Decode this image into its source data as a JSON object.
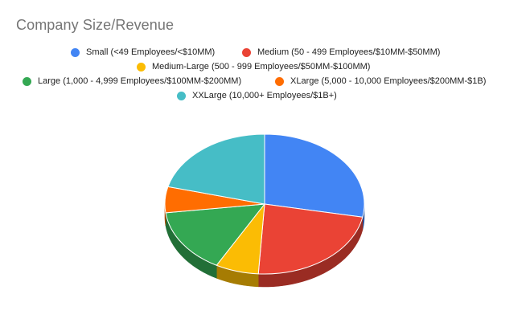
{
  "chart": {
    "title": "Company Size/Revenue"
  },
  "chart_data": {
    "type": "pie",
    "title": "Company Size/Revenue",
    "categories": [
      "Small (<49 Employees/<$10MM)",
      "Medium (50 - 499 Employees/$10MM-$50MM)",
      "Medium-Large (500 - 999 Employees/$50MM-$100MM)",
      "Large (1,000 - 4,999 Employees/$100MM-$200MM)",
      "XLarge (5,000 - 10,000 Employees/$200MM-$1B)",
      "XXLarge (10,000+ Employees/$1B+)"
    ],
    "values": [
      28,
      23,
      7,
      15,
      6,
      21
    ],
    "colors": [
      "#4285F4",
      "#EA4335",
      "#FBBC04",
      "#34A853",
      "#FF6D01",
      "#46BDC6"
    ],
    "legend": "top",
    "style": "3d"
  }
}
